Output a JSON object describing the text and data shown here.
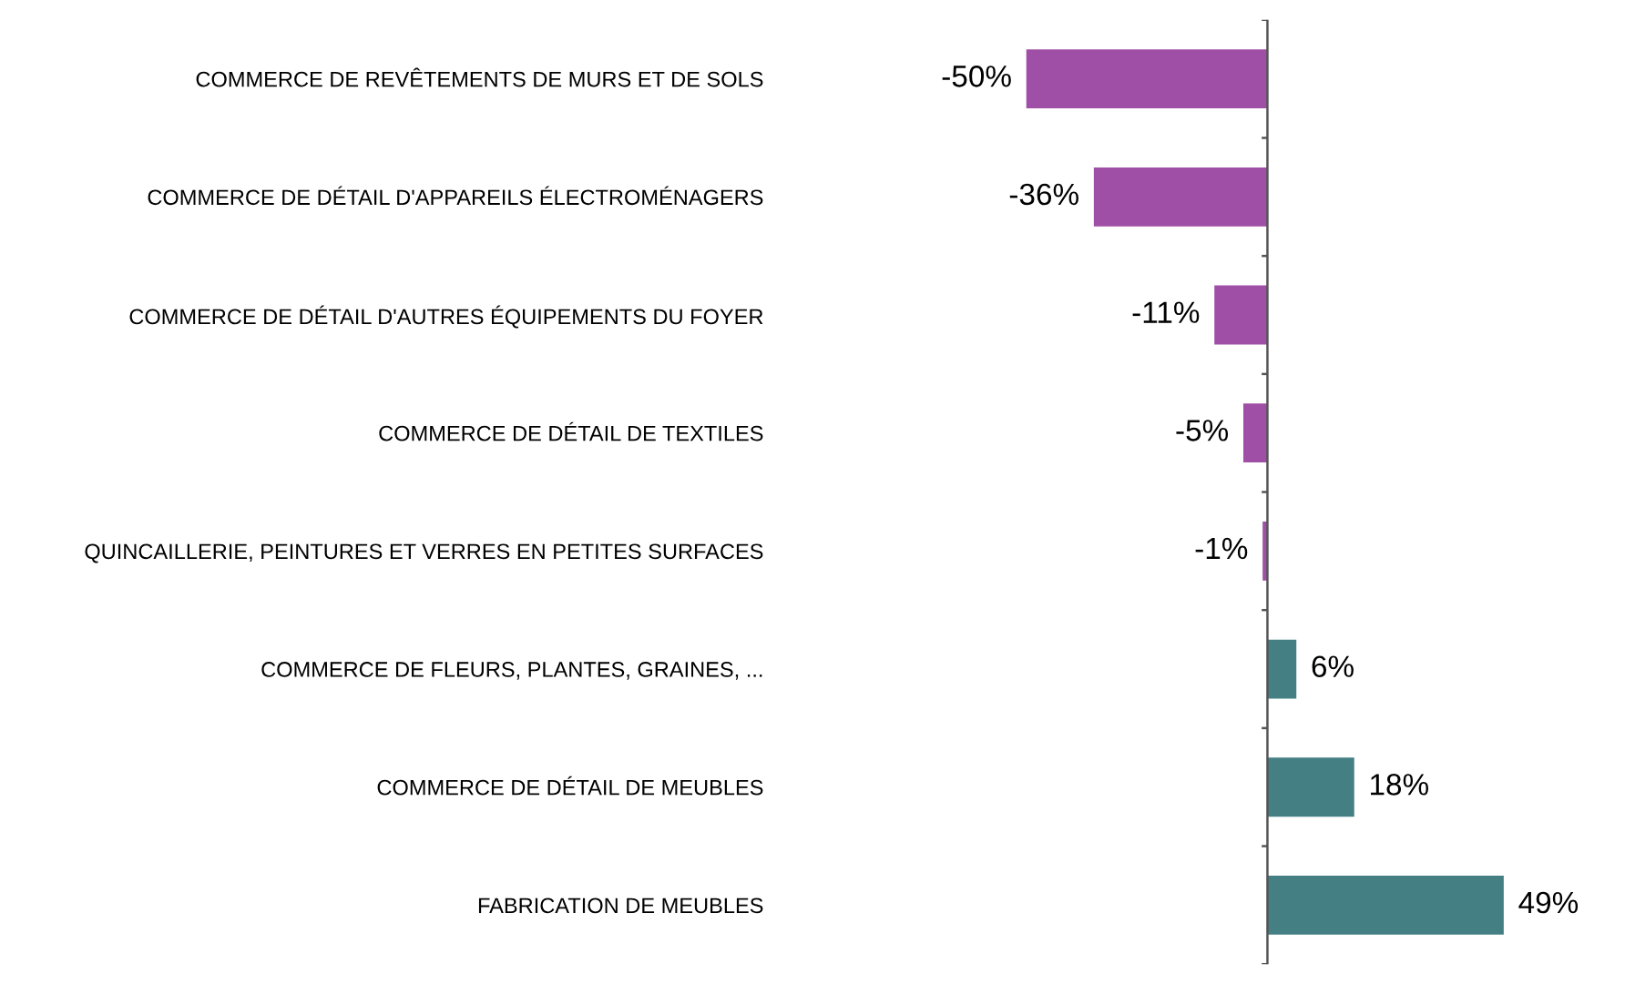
{
  "chart_data": {
    "type": "bar",
    "orientation": "horizontal",
    "categories": [
      "COMMERCE DE REVÊTEMENTS DE MURS ET DE SOLS",
      "COMMERCE DE DÉTAIL D'APPAREILS ÉLECTROMÉNAGERS",
      "COMMERCE DE DÉTAIL D'AUTRES ÉQUIPEMENTS DU FOYER",
      "COMMERCE DE DÉTAIL DE TEXTILES",
      "QUINCAILLERIE, PEINTURES ET VERRES EN PETITES SURFACES",
      "COMMERCE DE FLEURS, PLANTES, GRAINES, ...",
      "COMMERCE DE DÉTAIL DE MEUBLES",
      "FABRICATION DE MEUBLES"
    ],
    "values": [
      -50,
      -36,
      -11,
      -5,
      -1,
      6,
      18,
      49
    ],
    "colors": [
      "#a04fa6",
      "#a04fa6",
      "#a04fa6",
      "#a04fa6",
      "#a04fa6",
      "#447f84",
      "#447f84",
      "#447f84"
    ],
    "value_labels": [
      "-50%",
      "-36%",
      "-11%",
      "-5%",
      "-1%",
      "6%",
      "18%",
      "49%"
    ],
    "grid": false,
    "legend": false
  }
}
